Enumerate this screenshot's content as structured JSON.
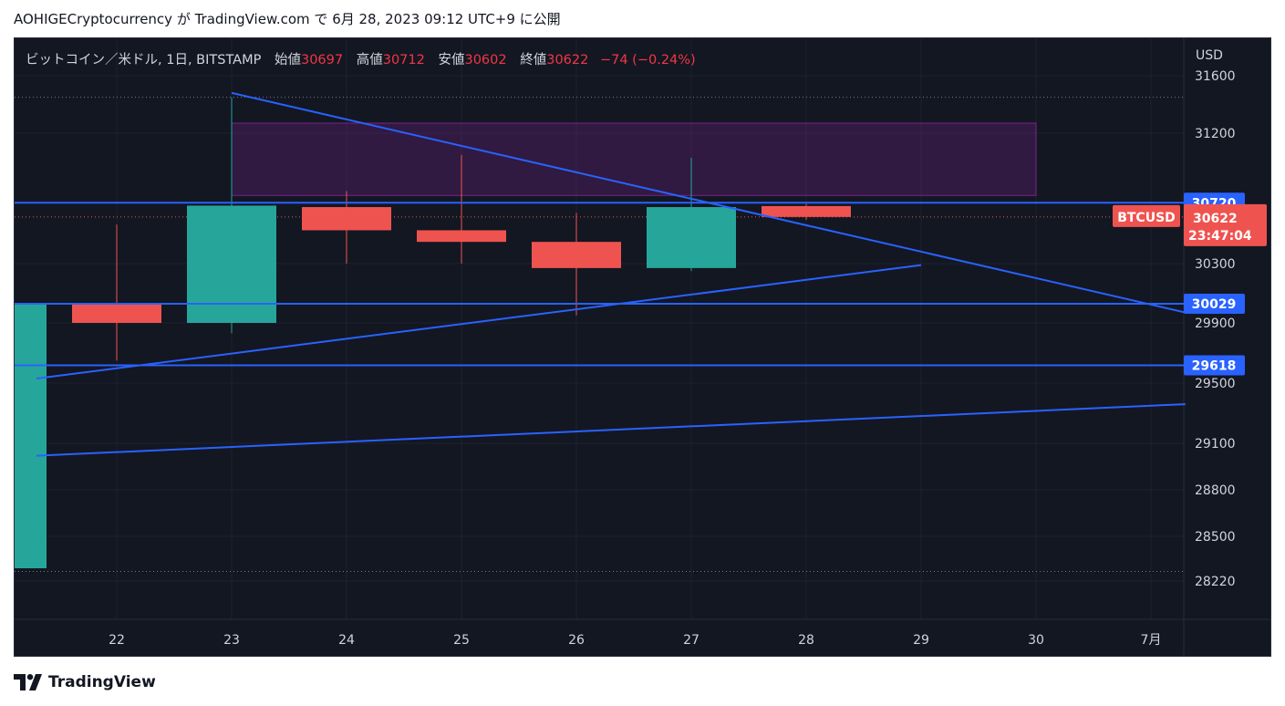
{
  "header": {
    "published_line": "AOHIGECryptocurrency が TradingView.com で 6月 28, 2023 09:12 UTC+9 に公開"
  },
  "legend": {
    "symbol": "ビットコイン／米ドル, 1日, BITSTAMP",
    "open_label": "始値",
    "open": "30697",
    "high_label": "高値",
    "high": "30712",
    "low_label": "安値",
    "low": "30602",
    "close_label": "終値",
    "close": "30622",
    "change": "−74 (−0.24%)"
  },
  "footer": {
    "brand": "TradingView"
  },
  "colors": {
    "background": "#131722",
    "up": "#26a69a",
    "down": "#ef5350",
    "line": "#2962ff",
    "zone": "#9c27b0"
  },
  "chart_data": {
    "type": "candlestick",
    "currency": "USD",
    "yticks": [
      "31600",
      "31200",
      "30300",
      "29900",
      "29500",
      "29100",
      "28800",
      "28500",
      "28220"
    ],
    "xticks": [
      "22",
      "23",
      "24",
      "25",
      "26",
      "27",
      "28",
      "29",
      "30",
      "7月"
    ],
    "candles": [
      {
        "x": 21,
        "open": 28300,
        "high": 30050,
        "low": 28300,
        "close": 30030
      },
      {
        "x": 22,
        "open": 30030,
        "high": 30570,
        "low": 29650,
        "close": 29900
      },
      {
        "x": 23,
        "open": 29900,
        "high": 31450,
        "low": 29830,
        "close": 30700
      },
      {
        "x": 24,
        "open": 30690,
        "high": 30800,
        "low": 30300,
        "close": 30530
      },
      {
        "x": 25,
        "open": 30530,
        "high": 31050,
        "low": 30300,
        "close": 30450
      },
      {
        "x": 26,
        "open": 30450,
        "high": 30650,
        "low": 29950,
        "close": 30270
      },
      {
        "x": 27,
        "open": 30270,
        "high": 31030,
        "low": 30250,
        "close": 30690
      },
      {
        "x": 28,
        "open": 30697,
        "high": 30712,
        "low": 30602,
        "close": 30622
      }
    ],
    "horizontal_lines": [
      {
        "value": 30720,
        "label": "30720"
      },
      {
        "value": 30029,
        "label": "30029"
      },
      {
        "value": 29618,
        "label": "29618"
      }
    ],
    "trend_lines": [
      {
        "from": {
          "x": 23,
          "y": 31480
        },
        "to": {
          "x": 31.3,
          "y": 29970
        }
      },
      {
        "from": {
          "x": 21.3,
          "y": 29530
        },
        "to": {
          "x": 29,
          "y": 30290
        }
      },
      {
        "from": {
          "x": 21.3,
          "y": 29020
        },
        "to": {
          "x": 31.3,
          "y": 29360
        }
      }
    ],
    "zone": {
      "x_from": 23,
      "x_to": 30,
      "y_from": 30770,
      "y_to": 31270
    },
    "dotted_levels": [
      31450,
      28280
    ],
    "last_price": {
      "symbol": "BTCUSD",
      "price": "30622",
      "countdown": "23:47:04",
      "value": 30622
    }
  }
}
